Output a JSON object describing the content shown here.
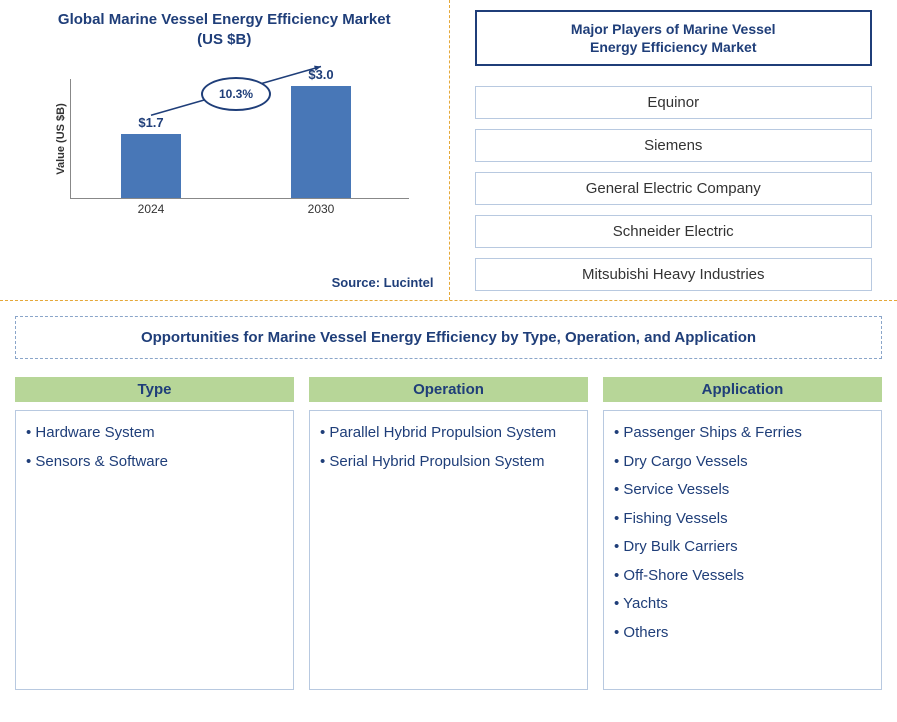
{
  "chart": {
    "title_line1": "Global Marine Vessel Energy Efficiency Market",
    "title_line2": "(US $B)",
    "y_axis_label": "Value (US $B)",
    "source_label": "Source: Lucintel",
    "type": "bar",
    "bar_color": "#4877b7",
    "categories": [
      "2024",
      "2030"
    ],
    "values": [
      1.7,
      3.0
    ],
    "value_labels": [
      "$1.7",
      "$3.0"
    ],
    "ylim_max": 3.2,
    "cagr_text": "10.3%",
    "title_color": "#1f3e79",
    "oval_border_color": "#1f3e79",
    "arrow_color": "#1f3e79",
    "axis_color": "#888888"
  },
  "players": {
    "title_line1": "Major Players of Marine Vessel",
    "title_line2": "Energy Efficiency Market",
    "items": [
      "Equinor",
      "Siemens",
      "General Electric Company",
      "Schneider Electric",
      "Mitsubishi Heavy Industries"
    ],
    "box_border_color": "#1f3e79",
    "item_border_color": "#b8c9e0"
  },
  "opportunities": {
    "title": "Opportunities for Marine Vessel Energy Efficiency by Type, Operation, and Application",
    "header_bg": "#b7d698",
    "columns": [
      {
        "header": "Type",
        "items": [
          "Hardware System",
          "Sensors & Software"
        ]
      },
      {
        "header": "Operation",
        "items": [
          "Parallel Hybrid Propulsion System",
          "Serial Hybrid Propulsion System"
        ]
      },
      {
        "header": "Application",
        "items": [
          "Passenger Ships & Ferries",
          "Dry Cargo Vessels",
          "Service Vessels",
          "Fishing Vessels",
          "Dry Bulk Carriers",
          "Off-Shore Vessels",
          "Yachts",
          "Others"
        ]
      }
    ]
  }
}
